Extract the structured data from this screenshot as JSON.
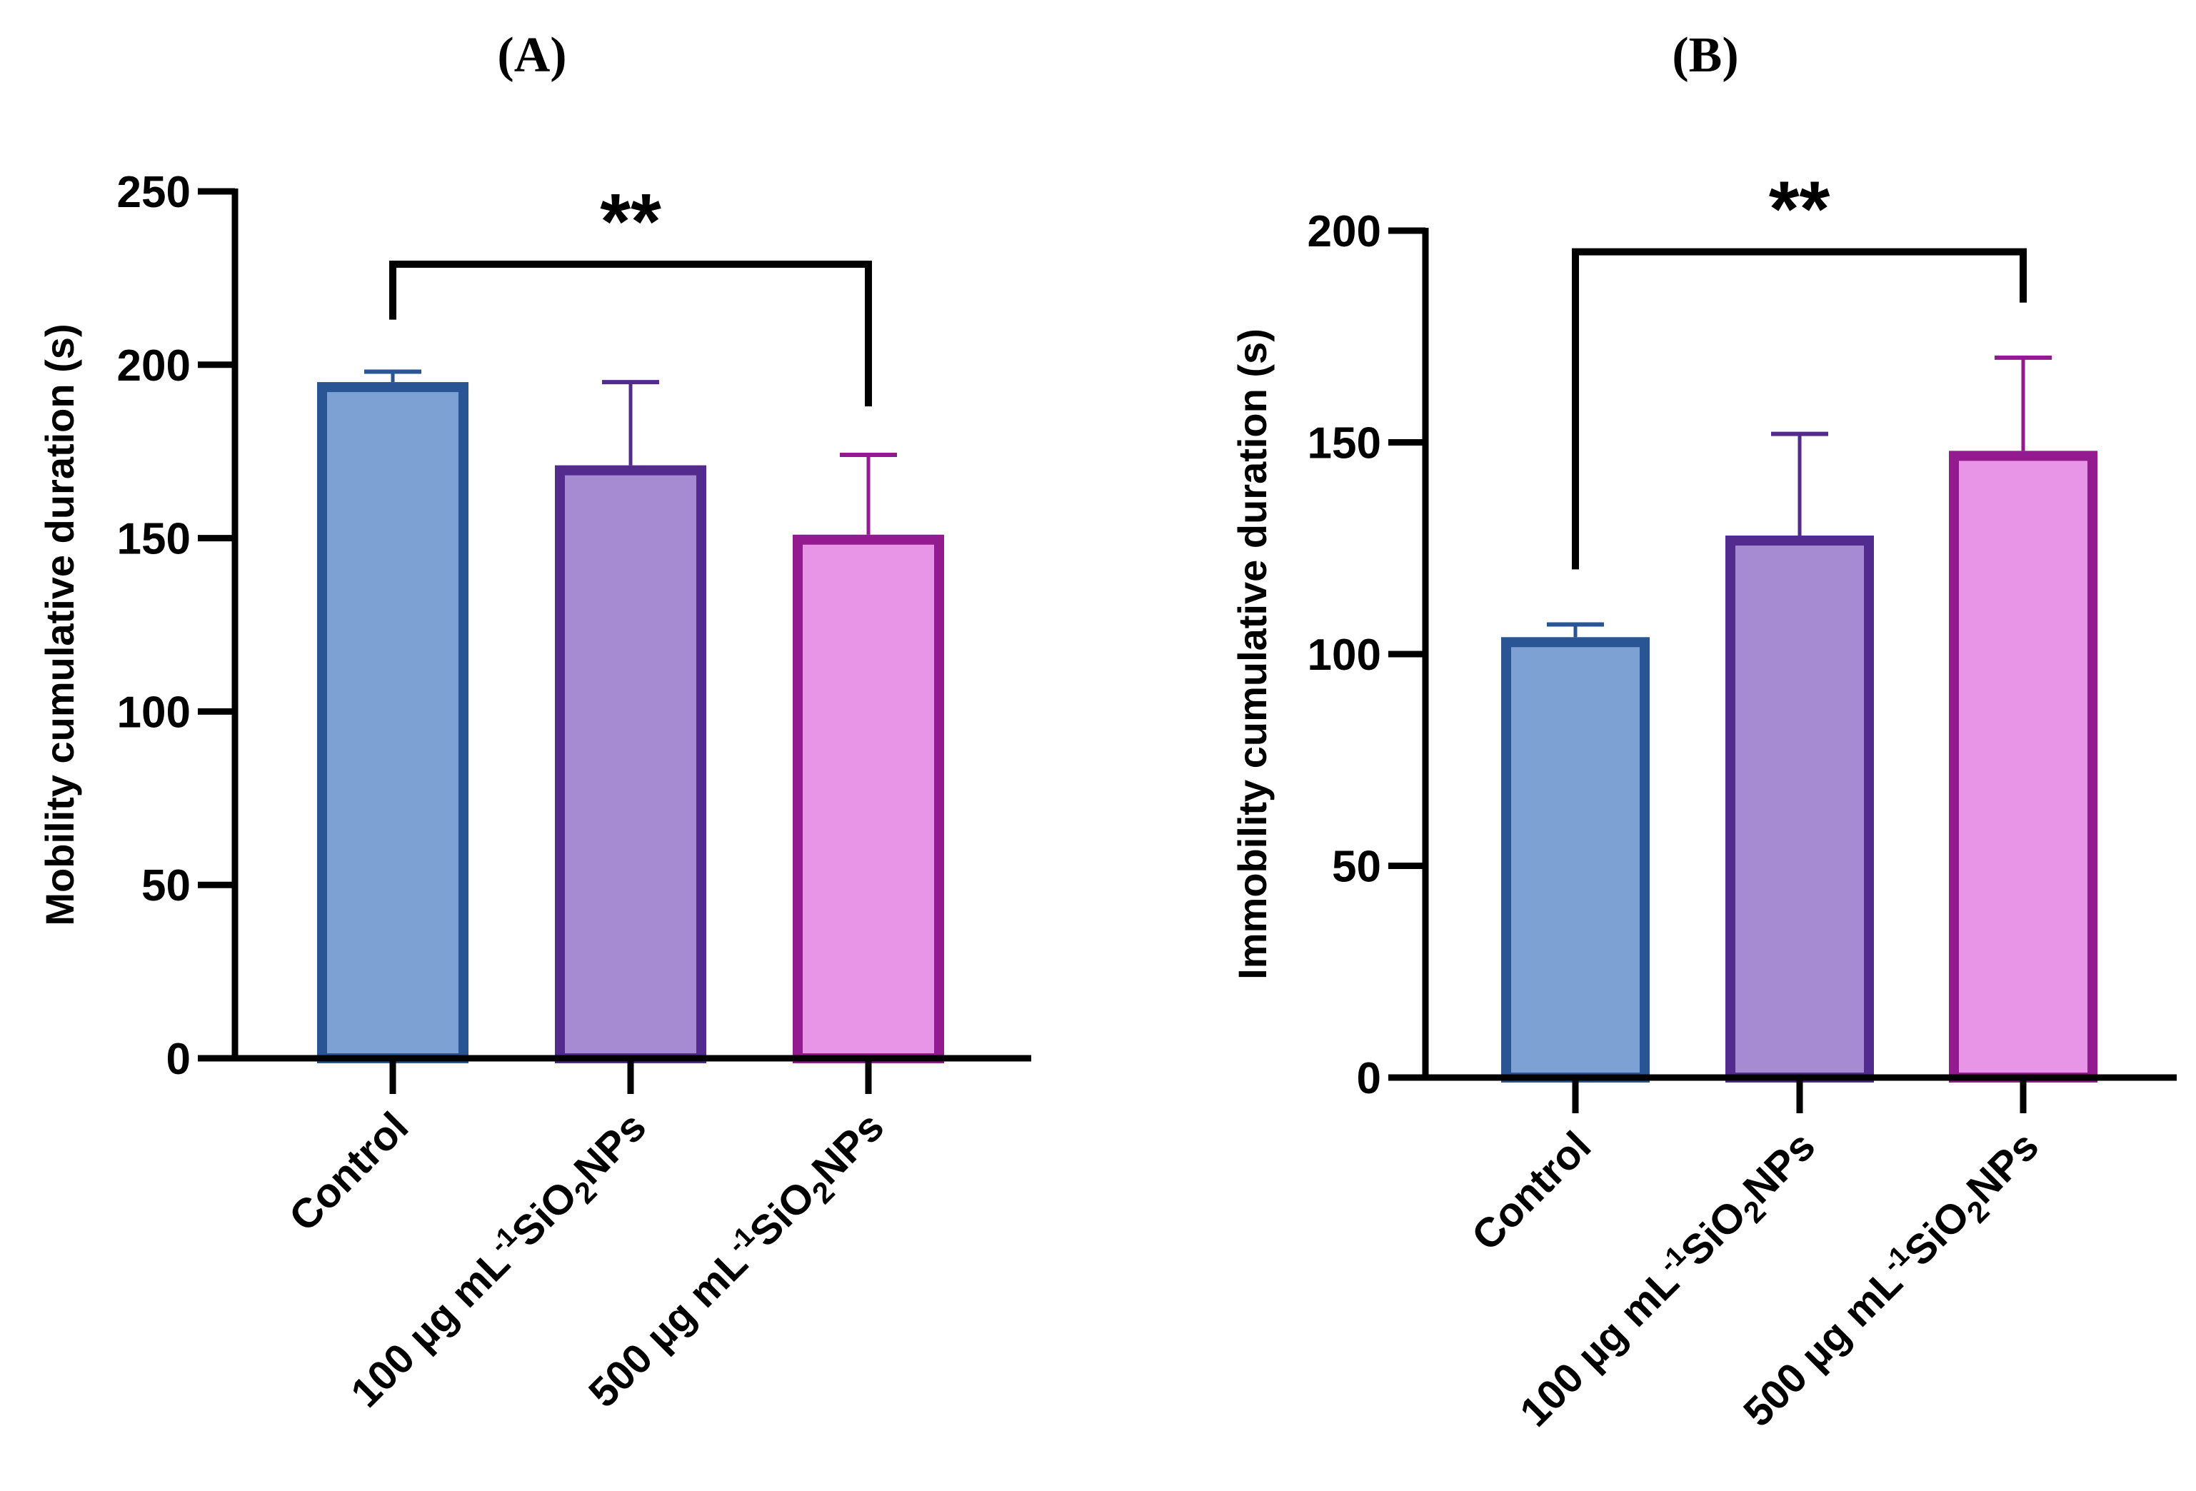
{
  "chart_data": [
    {
      "type": "bar",
      "panel_label": "(A)",
      "title": "",
      "xlabel": "",
      "ylabel": "Mobility cumulative duration (s)",
      "ylim": [
        0,
        250
      ],
      "yticks": [
        0,
        50,
        100,
        150,
        200,
        250
      ],
      "categories": [
        {
          "text": "Control",
          "sup": "",
          "chem": "",
          "sub": "",
          "tail": ""
        },
        {
          "text": "100 µg mL",
          "sup": "-1",
          "chem": "SiO",
          "sub": "2",
          "tail": "NPs"
        },
        {
          "text": "500 µg mL",
          "sup": "-1",
          "chem": "SiO",
          "sub": "2",
          "tail": "NPs"
        }
      ],
      "values": [
        195,
        171,
        151
      ],
      "error_upper": [
        198,
        195,
        174
      ],
      "fill_colors": [
        "#7ea1d4",
        "#a78bd2",
        "#e895e8"
      ],
      "edge_colors": [
        "#2a5594",
        "#532a8e",
        "#931a8f"
      ],
      "significance": {
        "label": "**",
        "from": 0,
        "to": 2,
        "bracket_y": 229,
        "left_end": 213,
        "right_end": 188
      }
    },
    {
      "type": "bar",
      "panel_label": "(B)",
      "title": "",
      "xlabel": "",
      "ylabel": "Immobility cumulative duration (s)",
      "ylim": [
        0,
        200
      ],
      "yticks": [
        0,
        50,
        100,
        150,
        200
      ],
      "categories": [
        {
          "text": "Control",
          "sup": "",
          "chem": "",
          "sub": "",
          "tail": ""
        },
        {
          "text": "100 µg mL",
          "sup": "-1",
          "chem": "SiO",
          "sub": "2",
          "tail": "NPs"
        },
        {
          "text": "500 µg mL",
          "sup": "-1",
          "chem": "SiO",
          "sub": "2",
          "tail": "NPs"
        }
      ],
      "values": [
        104,
        128,
        148
      ],
      "error_upper": [
        107,
        152,
        170
      ],
      "fill_colors": [
        "#7ea1d4",
        "#a78bd2",
        "#e895e8"
      ],
      "edge_colors": [
        "#2a5594",
        "#532a8e",
        "#931a8f"
      ],
      "significance": {
        "label": "**",
        "from": 0,
        "to": 2,
        "bracket_y": 195,
        "left_end": 120,
        "right_end": 183
      }
    }
  ]
}
